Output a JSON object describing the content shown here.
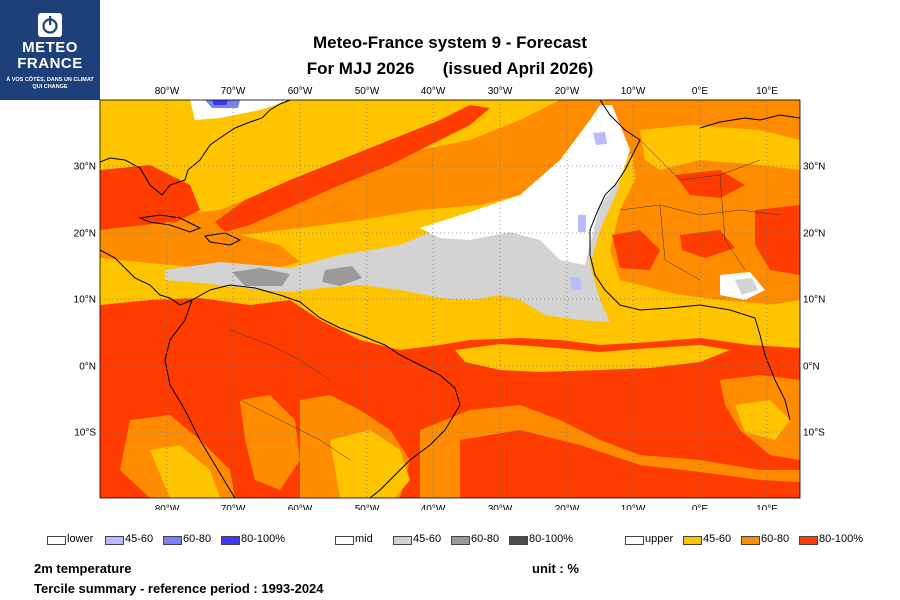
{
  "logo": {
    "name_line1": "METEO",
    "name_line2": "FRANCE",
    "tagline": "À VOS CÔTÉS, DANS UN CLIMAT QUI CHANGE"
  },
  "title": {
    "line1": "Meteo-France system 9  -  Forecast",
    "line2": "For MJJ 2026      (issued April 2026)"
  },
  "map": {
    "lon_labels": [
      "80°W",
      "70°W",
      "60°W",
      "50°W",
      "40°W",
      "30°W",
      "20°W",
      "10°W",
      "0°E",
      "10°E"
    ],
    "lat_labels": [
      "30°N",
      "20°N",
      "10°N",
      "0°N",
      "10°S"
    ]
  },
  "legend": {
    "lower": [
      {
        "label": "lower",
        "color": "#ffffff"
      },
      {
        "label": "45-60",
        "color": "#b8bcff"
      },
      {
        "label": "60-80",
        "color": "#7b80f5"
      },
      {
        "label": "80-100%",
        "color": "#3a3af0"
      }
    ],
    "mid": [
      {
        "label": "mid",
        "color": "#ffffff"
      },
      {
        "label": "45-60",
        "color": "#d3d3d3"
      },
      {
        "label": "60-80",
        "color": "#9a9a9a"
      },
      {
        "label": "80-100%",
        "color": "#4a4a4a"
      }
    ],
    "upper": [
      {
        "label": "upper",
        "color": "#ffffff"
      },
      {
        "label": "45-60",
        "color": "#ffc400"
      },
      {
        "label": "60-80",
        "color": "#ff8c00"
      },
      {
        "label": "80-100%",
        "color": "#ff3c00"
      }
    ]
  },
  "footer": {
    "variable": "2m temperature",
    "unit": "unit : %",
    "summary": "Tercile summary - reference period : 1993-2024"
  },
  "colors": {
    "upper_45_60": "#ffc400",
    "upper_60_80": "#ff8c00",
    "upper_80_100": "#ff3c00",
    "mid_45_60": "#d3d3d3",
    "mid_60_80": "#9a9a9a",
    "lower_45_60": "#b8bcff",
    "lower_60_80": "#7b80f5",
    "lower_80_100": "#3a3af0"
  }
}
